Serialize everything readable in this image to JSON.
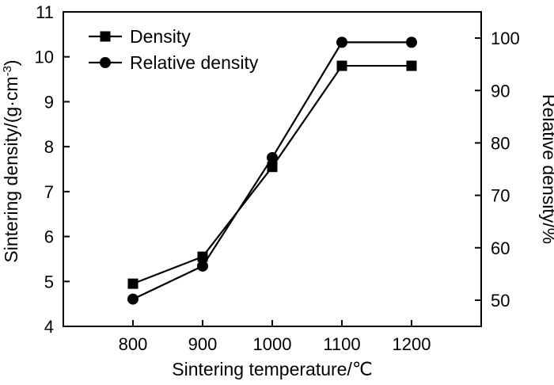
{
  "chart_data": {
    "type": "line",
    "x": [
      800,
      900,
      1000,
      1100,
      1200
    ],
    "xlabel": "Sintering temperature/℃",
    "ylabel_left": {
      "main": "Sintering density/(g·cm",
      "sup": "-3",
      "end": ")"
    },
    "ylabel_right": "Relative density/%",
    "xlim": [
      700,
      1300
    ],
    "ylim_left": [
      4,
      11
    ],
    "ylim_right": [
      45,
      105
    ],
    "x_ticks": [
      800,
      900,
      1000,
      1100,
      1200
    ],
    "y_ticks_left": [
      4,
      5,
      6,
      7,
      8,
      9,
      10,
      11
    ],
    "y_ticks_right": [
      50,
      60,
      70,
      80,
      90,
      100
    ],
    "legend_position": "top-left",
    "series": [
      {
        "name": "Density",
        "axis": "left",
        "marker": "square",
        "values": [
          4.95,
          5.55,
          7.55,
          9.8,
          9.8
        ]
      },
      {
        "name": "Relative density",
        "axis": "right",
        "marker": "circle",
        "values": [
          50.2,
          56.5,
          77.2,
          99.2,
          99.2
        ]
      }
    ]
  }
}
